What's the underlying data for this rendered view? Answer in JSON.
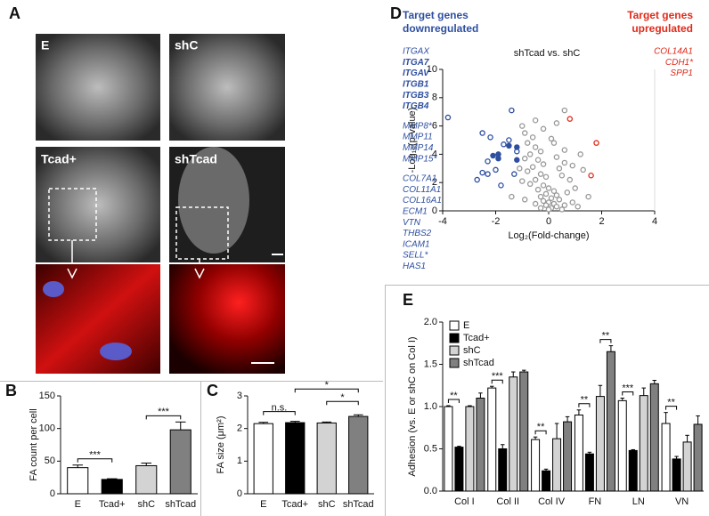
{
  "panel_letters": [
    "A",
    "B",
    "C",
    "D",
    "E"
  ],
  "image_labels": [
    "E",
    "shC",
    "Tcad+",
    "shTcad"
  ],
  "chart_data": [
    {
      "type": "bar",
      "ylabel": "FA count per cell",
      "categories": [
        "E",
        "Tcad+",
        "shC",
        "shTcad"
      ],
      "values": [
        40,
        22,
        43,
        98
      ],
      "errors": [
        4,
        1,
        4,
        12
      ],
      "colors": [
        "#ffffff",
        "#000000",
        "#d3d3d3",
        "#808080"
      ],
      "ylim": [
        0,
        150
      ],
      "yticks": [
        0,
        50,
        100,
        150
      ],
      "annotations": [
        "***",
        "***"
      ]
    },
    {
      "type": "bar",
      "ylabel": "FA size (μm²)",
      "categories": [
        "E",
        "Tcad+",
        "shC",
        "shTcad"
      ],
      "values": [
        2.15,
        2.18,
        2.17,
        2.37
      ],
      "errors": [
        0.04,
        0.04,
        0.03,
        0.05
      ],
      "colors": [
        "#ffffff",
        "#000000",
        "#d3d3d3",
        "#808080"
      ],
      "ylim": [
        0,
        3
      ],
      "yticks": [
        0,
        1,
        2,
        3
      ],
      "annotations": [
        "n.s.",
        "*",
        "*"
      ]
    },
    {
      "type": "scatter",
      "title": "shTcad vs. shC",
      "xlabel": "Log₂(Fold-change)",
      "ylabel": "-Log₁₀(p-value)",
      "xlim": [
        -4,
        4
      ],
      "xticks": [
        -4,
        -2,
        0,
        2,
        4
      ],
      "ylim": [
        0,
        10
      ],
      "yticks": [
        0,
        2,
        4,
        6,
        8,
        10
      ],
      "down_title": "Target genes downregulated",
      "up_title": "Target genes upregulated",
      "down_genes": [
        [
          "ITGAX",
          "ITGA7",
          "ITGAV",
          "ITGB1",
          "ITGB3",
          "ITGB4"
        ],
        [
          "MMP8*",
          "MMP11",
          "MMP14",
          "MMP15*"
        ],
        [
          "COL7A1",
          "COL11A1",
          "COL16A1",
          "ECM1",
          "VTN",
          "THBS2",
          "ICAM1",
          "SELL*",
          "HAS1"
        ]
      ],
      "up_genes": [
        "COL14A1",
        "CDH1*",
        "SPP1"
      ],
      "series": [
        {
          "color": "#999999",
          "filled": false,
          "x": [
            -1.0,
            -0.9,
            -0.6,
            -0.8,
            -0.5,
            -0.3,
            -0.7,
            -0.9,
            -0.4,
            -0.2,
            -0.6,
            -0.8,
            -0.3,
            -0.1,
            -0.5,
            -0.7,
            -0.2,
            0.0,
            -0.4,
            0.2,
            -0.1,
            0.3,
            -0.3,
            0.1,
            0.4,
            -0.2,
            0.0,
            0.2,
            -0.1,
            0.3,
            0.1,
            -0.3,
            0.5,
            0.0,
            -0.5,
            0.6,
            0.7,
            0.9,
            1.0,
            0.8,
            0.5,
            0.4,
            0.6,
            0.9,
            0.3,
            0.6,
            0.2,
            -0.2,
            -0.5,
            0.1,
            1.2,
            1.3,
            1.1,
            0.6,
            -1.4,
            -1.0,
            -1.1,
            -0.9,
            1.5,
            0.3
          ],
          "y": [
            6.0,
            5.5,
            5.2,
            4.8,
            4.5,
            4.2,
            4.0,
            3.7,
            3.6,
            3.3,
            3.1,
            2.8,
            2.6,
            2.4,
            2.2,
            1.9,
            1.8,
            1.6,
            1.5,
            1.4,
            1.2,
            1.1,
            1.0,
            0.9,
            0.8,
            0.7,
            0.6,
            0.5,
            0.4,
            0.3,
            0.2,
            0.2,
            0.1,
            0.1,
            0.5,
            0.4,
            1.3,
            0.6,
            1.6,
            2.2,
            2.5,
            3.0,
            3.4,
            3.2,
            3.8,
            4.3,
            4.8,
            5.8,
            6.4,
            5.1,
            4.0,
            2.9,
            0.3,
            7.1,
            1.0,
            2.1,
            3.0,
            0.8,
            1.0,
            6.2
          ]
        },
        {
          "color": "#2e4fa0",
          "filled": false,
          "x": [
            -3.8,
            -2.5,
            -1.4,
            -2.2,
            -1.7,
            -1.2,
            -2.3,
            -2.5,
            -2.3,
            -2.0,
            -1.8,
            -1.3,
            -1.5,
            -2.7
          ],
          "y": [
            6.6,
            5.5,
            7.1,
            5.2,
            4.7,
            4.2,
            3.5,
            2.7,
            2.6,
            2.9,
            1.8,
            2.6,
            5.0,
            2.2
          ]
        },
        {
          "color": "#2e4fa0",
          "filled": true,
          "x": [
            -1.5,
            -1.9,
            -1.2,
            -1.9,
            -1.2,
            -2.1
          ],
          "y": [
            4.6,
            4.0,
            3.6,
            3.7,
            4.5,
            3.9
          ]
        },
        {
          "color": "#e02a1a",
          "filled": false,
          "x": [
            0.8,
            1.8,
            1.6
          ],
          "y": [
            6.5,
            4.8,
            2.5
          ]
        }
      ]
    },
    {
      "type": "bar",
      "ylabel": "Adhesion (vs. E or shC on Col I)",
      "categories": [
        "Col I",
        "Col II",
        "Col IV",
        "FN",
        "LN",
        "VN"
      ],
      "ylim": [
        0,
        2.0
      ],
      "yticks": [
        {
          "value": 0,
          "label": "0.0"
        },
        0.5,
        {
          "value": 1.0,
          "label": "1.0"
        },
        1.5,
        {
          "value": 2.0,
          "label": "2.0"
        }
      ],
      "series": [
        {
          "name": "E",
          "color": "#ffffff",
          "values": [
            1.0,
            1.22,
            0.61,
            0.9,
            1.07,
            0.8
          ],
          "errors": [
            0.01,
            0.02,
            0.03,
            0.06,
            0.03,
            0.13
          ]
        },
        {
          "name": "Tcad+",
          "color": "#000000",
          "values": [
            0.52,
            0.5,
            0.24,
            0.44,
            0.48,
            0.38
          ],
          "errors": [
            0.01,
            0.05,
            0.02,
            0.02,
            0.01,
            0.03
          ]
        },
        {
          "name": "shC",
          "color": "#d3d3d3",
          "values": [
            1.0,
            1.35,
            0.62,
            1.12,
            1.13,
            0.58
          ],
          "errors": [
            0.01,
            0.06,
            0.18,
            0.13,
            0.09,
            0.08
          ]
        },
        {
          "name": "shTcad",
          "color": "#808080",
          "values": [
            1.1,
            1.41,
            0.82,
            1.65,
            1.27,
            0.79
          ],
          "errors": [
            0.06,
            0.02,
            0.06,
            0.07,
            0.04,
            0.1
          ]
        }
      ],
      "annotations": [
        "**",
        "***",
        "**",
        "**",
        "***",
        "**",
        "**"
      ]
    }
  ]
}
